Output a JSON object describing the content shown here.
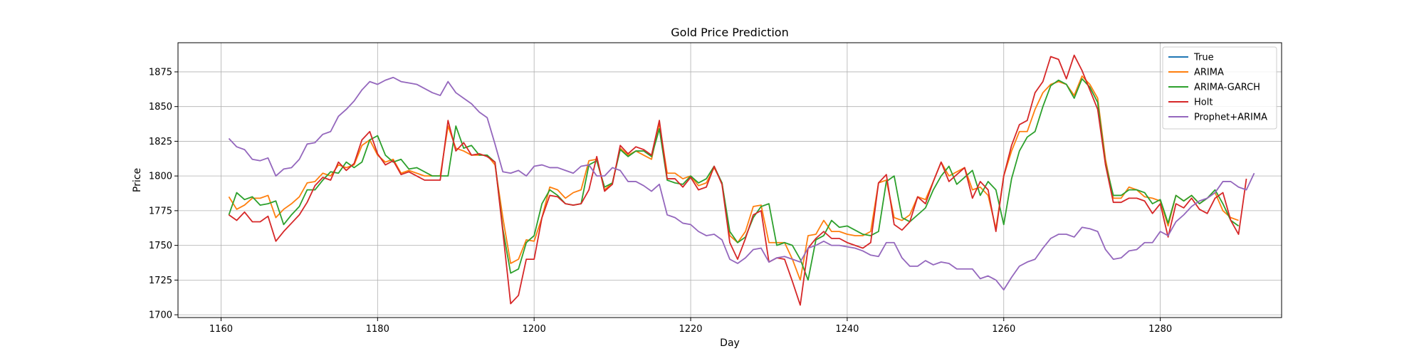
{
  "chart_data": {
    "type": "line",
    "title": "Gold Price Prediction",
    "xlabel": "Day",
    "ylabel": "Price",
    "xlim": [
      1154.5,
      1295.5
    ],
    "ylim": [
      1698,
      1896
    ],
    "xticks": [
      1160,
      1180,
      1200,
      1220,
      1240,
      1260,
      1280
    ],
    "yticks": [
      1700,
      1725,
      1750,
      1775,
      1800,
      1825,
      1850,
      1875
    ],
    "grid": true,
    "legend_position": "top-right",
    "x_start": 1161,
    "series": [
      {
        "name": "True",
        "color": "#1f77b4",
        "values": []
      },
      {
        "name": "ARIMA",
        "color": "#ff7f0e",
        "values": [
          1785,
          1776,
          1779,
          1784,
          1784,
          1786,
          1770,
          1776,
          1780,
          1785,
          1795,
          1796,
          1802,
          1800,
          1808,
          1806,
          1808,
          1822,
          1826,
          1815,
          1810,
          1812,
          1802,
          1804,
          1802,
          1800,
          1800,
          1800,
          1836,
          1820,
          1818,
          1815,
          1815,
          1815,
          1808,
          1770,
          1737,
          1740,
          1754,
          1753,
          1770,
          1792,
          1790,
          1784,
          1788,
          1790,
          1811,
          1812,
          1790,
          1795,
          1820,
          1815,
          1818,
          1815,
          1812,
          1838,
          1802,
          1802,
          1798,
          1800,
          1793,
          1795,
          1806,
          1795,
          1757,
          1752,
          1760,
          1778,
          1779,
          1752,
          1752,
          1752,
          1740,
          1725,
          1757,
          1758,
          1768,
          1760,
          1760,
          1758,
          1757,
          1757,
          1760,
          1795,
          1797,
          1770,
          1768,
          1772,
          1785,
          1783,
          1796,
          1810,
          1800,
          1803,
          1806,
          1790,
          1792,
          1786,
          1762,
          1800,
          1818,
          1832,
          1832,
          1848,
          1860,
          1866,
          1868,
          1866,
          1858,
          1872,
          1866,
          1856,
          1812,
          1784,
          1784,
          1792,
          1790,
          1785,
          1784,
          1782,
          1764,
          1786,
          1782,
          1786,
          1780,
          1784,
          1788,
          1775,
          1770,
          1768
        ]
      },
      {
        "name": "ARIMA-GARCH",
        "color": "#2ca02c",
        "values": [
          1772,
          1788,
          1783,
          1785,
          1779,
          1780,
          1782,
          1765,
          1772,
          1778,
          1790,
          1790,
          1797,
          1803,
          1802,
          1810,
          1806,
          1810,
          1826,
          1829,
          1815,
          1810,
          1812,
          1805,
          1806,
          1803,
          1800,
          1800,
          1800,
          1836,
          1820,
          1822,
          1815,
          1815,
          1810,
          1762,
          1730,
          1733,
          1752,
          1757,
          1780,
          1790,
          1786,
          1780,
          1779,
          1780,
          1808,
          1811,
          1792,
          1795,
          1819,
          1814,
          1818,
          1818,
          1814,
          1834,
          1797,
          1795,
          1794,
          1800,
          1795,
          1798,
          1807,
          1795,
          1760,
          1752,
          1756,
          1770,
          1778,
          1780,
          1750,
          1752,
          1750,
          1740,
          1725,
          1754,
          1757,
          1768,
          1763,
          1764,
          1761,
          1758,
          1757,
          1760,
          1796,
          1800,
          1770,
          1767,
          1772,
          1777,
          1790,
          1800,
          1807,
          1794,
          1799,
          1804,
          1786,
          1796,
          1790,
          1765,
          1798,
          1818,
          1828,
          1832,
          1850,
          1865,
          1869,
          1866,
          1856,
          1870,
          1864,
          1853,
          1809,
          1786,
          1786,
          1790,
          1790,
          1788,
          1780,
          1783,
          1766,
          1786,
          1782,
          1786,
          1780,
          1784,
          1790,
          1780,
          1768,
          1764
        ]
      },
      {
        "name": "Holt",
        "color": "#d62728",
        "values": [
          1772,
          1768,
          1774,
          1767,
          1767,
          1771,
          1753,
          1760,
          1766,
          1772,
          1781,
          1793,
          1799,
          1797,
          1810,
          1804,
          1809,
          1826,
          1832,
          1816,
          1808,
          1811,
          1801,
          1803,
          1800,
          1797,
          1797,
          1797,
          1840,
          1818,
          1824,
          1815,
          1816,
          1814,
          1810,
          1760,
          1708,
          1714,
          1740,
          1740,
          1770,
          1786,
          1785,
          1780,
          1779,
          1780,
          1790,
          1814,
          1789,
          1794,
          1822,
          1816,
          1821,
          1819,
          1815,
          1840,
          1798,
          1798,
          1792,
          1799,
          1790,
          1792,
          1807,
          1794,
          1752,
          1740,
          1755,
          1772,
          1775,
          1738,
          1741,
          1740,
          1724,
          1707,
          1748,
          1755,
          1760,
          1755,
          1755,
          1752,
          1750,
          1748,
          1752,
          1795,
          1801,
          1765,
          1761,
          1767,
          1785,
          1780,
          1796,
          1810,
          1796,
          1801,
          1806,
          1784,
          1796,
          1790,
          1760,
          1800,
          1822,
          1837,
          1840,
          1860,
          1868,
          1886,
          1884,
          1870,
          1887,
          1876,
          1862,
          1848,
          1808,
          1781,
          1781,
          1784,
          1784,
          1782,
          1773,
          1780,
          1756,
          1780,
          1777,
          1784,
          1776,
          1773,
          1784,
          1788,
          1768,
          1758,
          1798
        ]
      },
      {
        "name": "Prophet+ARIMA",
        "color": "#9467bd",
        "values": [
          1827,
          1821,
          1819,
          1812,
          1811,
          1813,
          1800,
          1805,
          1806,
          1812,
          1823,
          1824,
          1830,
          1832,
          1843,
          1848,
          1854,
          1862,
          1868,
          1866,
          1869,
          1871,
          1868,
          1867,
          1866,
          1863,
          1860,
          1858,
          1868,
          1860,
          1856,
          1852,
          1846,
          1842,
          1823,
          1803,
          1802,
          1804,
          1800,
          1807,
          1808,
          1806,
          1806,
          1804,
          1802,
          1807,
          1808,
          1800,
          1800,
          1806,
          1804,
          1796,
          1796,
          1793,
          1789,
          1794,
          1772,
          1770,
          1766,
          1765,
          1760,
          1757,
          1758,
          1754,
          1740,
          1737,
          1741,
          1747,
          1748,
          1738,
          1741,
          1742,
          1740,
          1738,
          1748,
          1750,
          1753,
          1750,
          1750,
          1749,
          1748,
          1746,
          1743,
          1742,
          1752,
          1752,
          1741,
          1735,
          1735,
          1739,
          1736,
          1738,
          1737,
          1733,
          1733,
          1733,
          1726,
          1728,
          1725,
          1718,
          1727,
          1735,
          1738,
          1740,
          1748,
          1755,
          1758,
          1758,
          1756,
          1763,
          1762,
          1760,
          1747,
          1740,
          1741,
          1746,
          1747,
          1752,
          1752,
          1760,
          1757,
          1767,
          1772,
          1778,
          1782,
          1784,
          1788,
          1796,
          1796,
          1792,
          1790,
          1802
        ]
      }
    ]
  }
}
